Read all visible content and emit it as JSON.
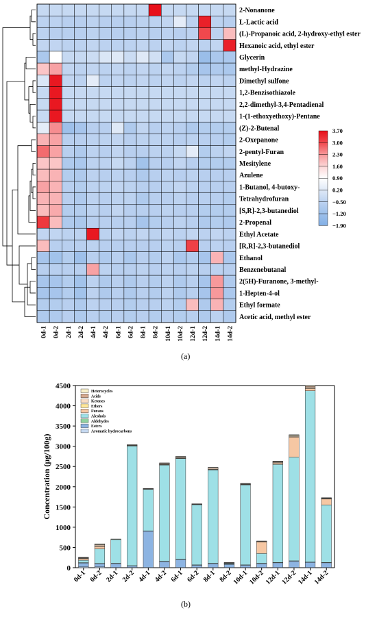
{
  "panel_a_caption": "(a)",
  "panel_b_caption": "(b)",
  "chart_data": [
    {
      "type": "heatmap",
      "rows": [
        "2-Nonanone",
        "L-Lactic acid",
        "(L)-Propanoic acid, 2-hydroxy-ethyl ester",
        "Hexanoic acid, ethyl ester",
        "Glycerin",
        "methyl-Hydrazine",
        "Dimethyl sulfone",
        "1,2-Benzisothiazole",
        "2,2-dimethyl-3,4-Pentadienal",
        "1-(1-ethoxyethoxy)-Pentane",
        "(Z)-2-Butenal",
        "2-Oxepanone",
        "2-pentyl-Furan",
        "Mesitylene",
        "Azulene",
        "1-Butanol, 4-butoxy-",
        "Tetrahydrofuran",
        "[S,R]-2,3-butanediol",
        "2-Propenal",
        "Ethyl Acetate",
        "[R,R]-2,3-butanediol",
        "Ethanol",
        "Benzenebutanal",
        "2(5H)-Furanone, 3-methyl-",
        "1-Hepten-4-ol",
        "Ethyl formate",
        "Acetic acid, methyl ester"
      ],
      "columns": [
        "0d-1",
        "0d-2",
        "2d-1",
        "2d-2",
        "4d-1",
        "4d-2",
        "6d-1",
        "6d-2",
        "8d-1",
        "8d-2",
        "10d-1",
        "10d-2",
        "12d-1",
        "12d-2",
        "14d-1",
        "14d-2"
      ],
      "values": [
        [
          -0.3,
          -0.3,
          -0.3,
          -0.3,
          -0.3,
          -0.3,
          -0.3,
          -0.3,
          -0.3,
          3.7,
          -0.3,
          -0.3,
          -0.3,
          -0.3,
          -0.3,
          -0.3
        ],
        [
          -0.5,
          -0.5,
          -0.6,
          -0.6,
          -0.5,
          -0.6,
          -0.6,
          -0.6,
          -0.5,
          -0.5,
          -0.4,
          0.3,
          -0.5,
          3.5,
          -0.5,
          -0.6
        ],
        [
          -0.5,
          -0.6,
          -0.6,
          -0.6,
          -0.5,
          -0.6,
          -0.6,
          -0.6,
          -0.5,
          -0.6,
          -0.5,
          -0.6,
          -0.5,
          3.0,
          -0.5,
          1.9
        ],
        [
          -0.4,
          -0.4,
          -0.5,
          -0.5,
          -0.4,
          -0.5,
          -0.5,
          -0.5,
          -0.4,
          -0.5,
          -0.4,
          -0.5,
          -0.4,
          -0.5,
          -0.4,
          3.5
        ],
        [
          -0.9,
          0.9,
          -0.3,
          -0.3,
          -0.2,
          0.1,
          0.2,
          -0.2,
          0.2,
          -0.1,
          -0.9,
          -0.3,
          -0.4,
          -1.3,
          -0.9,
          -0.9
        ],
        [
          1.8,
          2.2,
          -0.4,
          -0.5,
          -0.4,
          -0.5,
          -0.4,
          -0.5,
          -0.4,
          -0.5,
          -0.4,
          -0.5,
          -0.7,
          -1.0,
          -0.8,
          -0.9
        ],
        [
          0.1,
          3.6,
          -0.4,
          -0.5,
          0.3,
          -0.5,
          -0.4,
          -0.5,
          -0.4,
          -0.5,
          -0.4,
          -0.5,
          -0.4,
          -0.5,
          -0.4,
          -0.5
        ],
        [
          -0.3,
          3.6,
          -0.3,
          -0.3,
          -0.3,
          -0.3,
          -0.3,
          -0.3,
          -0.3,
          -0.3,
          -0.3,
          -0.3,
          -0.3,
          -0.3,
          -0.3,
          -0.3
        ],
        [
          -0.3,
          3.6,
          -0.3,
          -0.3,
          -0.3,
          -0.3,
          -0.3,
          -0.3,
          -0.3,
          -0.3,
          -0.3,
          -0.3,
          -0.3,
          -0.3,
          -0.3,
          -0.3
        ],
        [
          -0.3,
          3.6,
          -0.3,
          -0.3,
          -0.3,
          -0.3,
          -0.3,
          -0.3,
          -0.3,
          -0.3,
          -0.3,
          -0.3,
          -0.3,
          -0.3,
          -0.3,
          -0.3
        ],
        [
          0.3,
          2.4,
          -1.2,
          -1.0,
          -0.6,
          -0.6,
          0.2,
          -0.8,
          -0.4,
          -0.6,
          -0.5,
          -0.6,
          -0.8,
          -0.7,
          -0.7,
          -0.7
        ],
        [
          2.0,
          2.2,
          -0.6,
          -0.6,
          -0.5,
          -0.5,
          -0.4,
          -0.6,
          -0.5,
          -0.5,
          -0.5,
          -0.6,
          -0.5,
          -0.6,
          -0.6,
          -0.7
        ],
        [
          2.7,
          2.2,
          -0.6,
          -0.8,
          -0.5,
          -0.6,
          -0.4,
          -0.6,
          -0.6,
          -0.5,
          -0.5,
          -0.3,
          0.3,
          -0.7,
          -0.5,
          -0.4
        ],
        [
          1.8,
          1.8,
          -0.8,
          -0.9,
          -0.5,
          -0.5,
          -0.3,
          -0.5,
          -1.1,
          -0.6,
          -0.6,
          -0.4,
          -0.6,
          -0.7,
          -0.7,
          -0.7
        ],
        [
          1.9,
          2.0,
          -0.7,
          -0.8,
          -0.5,
          -0.6,
          -0.5,
          -0.6,
          -0.8,
          -0.6,
          -0.5,
          -0.6,
          -0.5,
          -0.6,
          -0.6,
          -0.6
        ],
        [
          2.2,
          2.0,
          -0.6,
          -0.7,
          -0.5,
          -0.5,
          -0.4,
          -0.5,
          -0.6,
          -0.6,
          -0.5,
          -0.4,
          -0.5,
          -0.6,
          -0.6,
          -0.6
        ],
        [
          2.0,
          2.0,
          -0.6,
          -0.8,
          -0.5,
          -0.6,
          -0.5,
          -0.5,
          -0.8,
          -0.6,
          -0.6,
          -0.5,
          -0.6,
          -0.6,
          -0.6,
          -0.7
        ],
        [
          1.9,
          2.1,
          -0.7,
          -0.7,
          -0.5,
          -0.6,
          -0.4,
          -0.6,
          -0.6,
          -0.6,
          -0.5,
          -0.6,
          -0.6,
          -0.7,
          -0.7,
          -0.7
        ],
        [
          3.2,
          1.9,
          -0.8,
          -0.9,
          -0.6,
          -0.6,
          -0.6,
          -0.6,
          -1.0,
          -0.7,
          -0.6,
          -0.5,
          -0.6,
          -0.8,
          -0.7,
          -0.8
        ],
        [
          -0.4,
          -0.4,
          -0.5,
          -0.5,
          3.6,
          -0.5,
          -0.4,
          -0.5,
          -0.4,
          -0.5,
          -0.4,
          -0.5,
          -0.4,
          -0.5,
          -0.4,
          -0.5
        ],
        [
          1.9,
          -0.6,
          -0.6,
          -0.6,
          -0.5,
          -0.6,
          -0.6,
          -0.6,
          -0.6,
          -0.6,
          -0.5,
          -0.6,
          3.1,
          -0.6,
          -0.5,
          -0.6
        ],
        [
          -1.0,
          -1.1,
          -0.7,
          -1.2,
          -0.6,
          -0.8,
          -0.6,
          -0.9,
          -0.6,
          -0.7,
          -0.5,
          -0.9,
          -0.7,
          -1.0,
          2.0,
          -0.9
        ],
        [
          -0.6,
          -0.6,
          -0.6,
          -0.6,
          2.2,
          -0.5,
          -0.6,
          -0.6,
          -0.5,
          -0.6,
          -0.5,
          -0.6,
          -0.5,
          -0.6,
          -0.5,
          -0.6
        ],
        [
          -1.0,
          -1.0,
          -0.7,
          -1.1,
          -0.5,
          -0.8,
          -0.6,
          -0.8,
          -0.6,
          -0.7,
          -0.5,
          -0.8,
          -0.6,
          -1.0,
          2.3,
          -0.8
        ],
        [
          -1.0,
          -1.0,
          -0.7,
          -1.1,
          -0.5,
          -0.8,
          -0.6,
          -0.8,
          -0.6,
          -0.7,
          -0.5,
          -0.8,
          -0.6,
          -1.0,
          2.3,
          -0.9
        ],
        [
          -0.7,
          -0.7,
          -0.6,
          -0.8,
          -0.5,
          -0.6,
          -0.6,
          -0.7,
          -0.6,
          -0.6,
          -0.5,
          -0.7,
          1.9,
          -0.8,
          2.0,
          -0.7
        ],
        [
          -0.8,
          -0.8,
          -0.6,
          -0.8,
          -0.6,
          -0.7,
          -0.6,
          -0.7,
          -0.6,
          -0.7,
          -0.6,
          -0.7,
          -0.6,
          -0.8,
          -0.5,
          -0.8
        ]
      ],
      "colorbar": {
        "ticks": [
          3.7,
          3.0,
          2.3,
          1.6,
          0.9,
          0.2,
          -0.5,
          -1.2,
          -1.9
        ],
        "tick_labels": [
          "3.70",
          "3.00",
          "2.30",
          "1.60",
          "0.90",
          "0.20",
          "−0.50",
          "−1.20",
          "−1.90"
        ],
        "colors": [
          "#e8101a",
          "#f0484d",
          "#f7999b",
          "#fcd6d7",
          "#ffffff",
          "#dfe9f7",
          "#bcd2f0",
          "#9ec0ea",
          "#82afe6"
        ]
      },
      "dendrogram": "left"
    },
    {
      "type": "bar",
      "stacked": true,
      "categories": [
        "0d-1",
        "0d-2",
        "2d-1",
        "2d-2",
        "4d-1",
        "4d-2",
        "6d-1",
        "6d-2",
        "8d-1",
        "8d-2",
        "10d-1",
        "10d-2",
        "12d-1",
        "12d-2",
        "14d-1",
        "14d-2"
      ],
      "ylabel": "Concentration (μg/100g)",
      "ylim": [
        0,
        4500
      ],
      "yticks": [
        0,
        500,
        1000,
        1500,
        2000,
        2500,
        3000,
        3500,
        4000,
        4500
      ],
      "legend_position": "top-left",
      "series": [
        {
          "name": "Aromatic hydrocarbons",
          "color": "#c6d9f1",
          "values": [
            20,
            20,
            5,
            5,
            5,
            5,
            5,
            5,
            5,
            5,
            5,
            5,
            5,
            5,
            5,
            5
          ]
        },
        {
          "name": "Esters",
          "color": "#8db4e2",
          "values": [
            100,
            80,
            100,
            40,
            900,
            150,
            200,
            60,
            100,
            80,
            60,
            100,
            120,
            160,
            130,
            120
          ]
        },
        {
          "name": "Aldehydes",
          "color": "#8fd29e",
          "values": [
            5,
            5,
            5,
            5,
            5,
            5,
            5,
            5,
            5,
            5,
            5,
            5,
            5,
            5,
            5,
            5
          ]
        },
        {
          "name": "Alcohols",
          "color": "#9ee0e6",
          "values": [
            60,
            360,
            590,
            2960,
            1030,
            2380,
            2490,
            1490,
            2310,
            20,
            1980,
            240,
            2420,
            2560,
            4230,
            1420
          ]
        },
        {
          "name": "Furans",
          "color": "#f6c7a3",
          "values": [
            40,
            60,
            5,
            5,
            5,
            5,
            5,
            5,
            5,
            5,
            5,
            290,
            40,
            500,
            60,
            150
          ]
        },
        {
          "name": "Ethers",
          "color": "#ffe79a",
          "values": [
            5,
            5,
            5,
            5,
            5,
            5,
            5,
            5,
            5,
            5,
            5,
            5,
            5,
            5,
            5,
            5
          ]
        },
        {
          "name": "Ketones",
          "color": "#f9dcc4",
          "values": [
            10,
            30,
            0,
            10,
            5,
            20,
            20,
            5,
            30,
            5,
            10,
            10,
            20,
            20,
            30,
            10
          ]
        },
        {
          "name": "Acids",
          "color": "#d5a98f",
          "values": [
            10,
            10,
            0,
            5,
            5,
            10,
            10,
            5,
            10,
            5,
            5,
            5,
            10,
            10,
            20,
            5
          ]
        },
        {
          "name": "Heterocycles",
          "color": "#f7efc9",
          "values": [
            10,
            20,
            0,
            5,
            0,
            10,
            10,
            0,
            10,
            0,
            10,
            0,
            10,
            20,
            20,
            10
          ]
        }
      ]
    }
  ]
}
